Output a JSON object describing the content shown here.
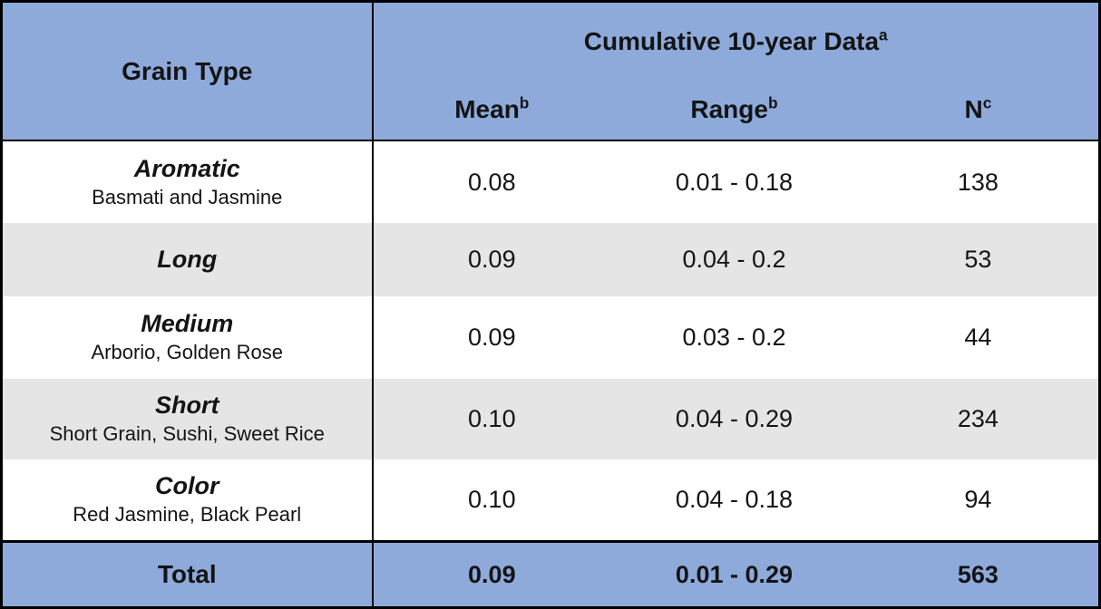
{
  "colors": {
    "header_blue": "#8EAADB",
    "row_gray": "#E6E5E5",
    "row_white": "#FFFFFF",
    "border_black": "#000000"
  },
  "table": {
    "grain_type_header": "Grain Type",
    "span_header": {
      "label": "Cumulative 10-year Data",
      "sup": "a"
    },
    "columns": [
      {
        "label": "Mean",
        "sup": "b"
      },
      {
        "label": "Range",
        "sup": "b"
      },
      {
        "label": "N",
        "sup": "c"
      }
    ],
    "rows": [
      {
        "type": "Aromatic",
        "subtitle": "Basmati and Jasmine",
        "mean": "0.08",
        "range": "0.01 - 0.18",
        "n": "138"
      },
      {
        "type": "Long",
        "subtitle": "",
        "mean": "0.09",
        "range": "0.04 - 0.2",
        "n": "53"
      },
      {
        "type": "Medium",
        "subtitle": "Arborio, Golden Rose",
        "mean": "0.09",
        "range": "0.03 - 0.2",
        "n": "44"
      },
      {
        "type": "Short",
        "subtitle": "Short Grain, Sushi, Sweet Rice",
        "mean": "0.10",
        "range": "0.04 - 0.29",
        "n": "234"
      },
      {
        "type": "Color",
        "subtitle": "Red Jasmine, Black Pearl",
        "mean": "0.10",
        "range": "0.04 - 0.18",
        "n": "94"
      }
    ],
    "total": {
      "label": "Total",
      "mean": "0.09",
      "range": "0.01 - 0.29",
      "n": "563"
    }
  },
  "chart_data": {
    "type": "table",
    "title": "Cumulative 10-year Data",
    "footnote_markers": {
      "cumulative_data": "a",
      "mean": "b",
      "range": "b",
      "n": "c"
    },
    "columns": [
      "Grain Type",
      "Mean",
      "Range",
      "N"
    ],
    "rows": [
      [
        "Aromatic (Basmati and Jasmine)",
        0.08,
        "0.01 - 0.18",
        138
      ],
      [
        "Long",
        0.09,
        "0.04 - 0.2",
        53
      ],
      [
        "Medium (Arborio, Golden Rose)",
        0.09,
        "0.03 - 0.2",
        44
      ],
      [
        "Short (Short Grain, Sushi, Sweet Rice)",
        0.1,
        "0.04 - 0.29",
        234
      ],
      [
        "Color (Red Jasmine, Black Pearl)",
        0.1,
        "0.04 - 0.18",
        94
      ],
      [
        "Total",
        0.09,
        "0.01 - 0.29",
        563
      ]
    ]
  }
}
